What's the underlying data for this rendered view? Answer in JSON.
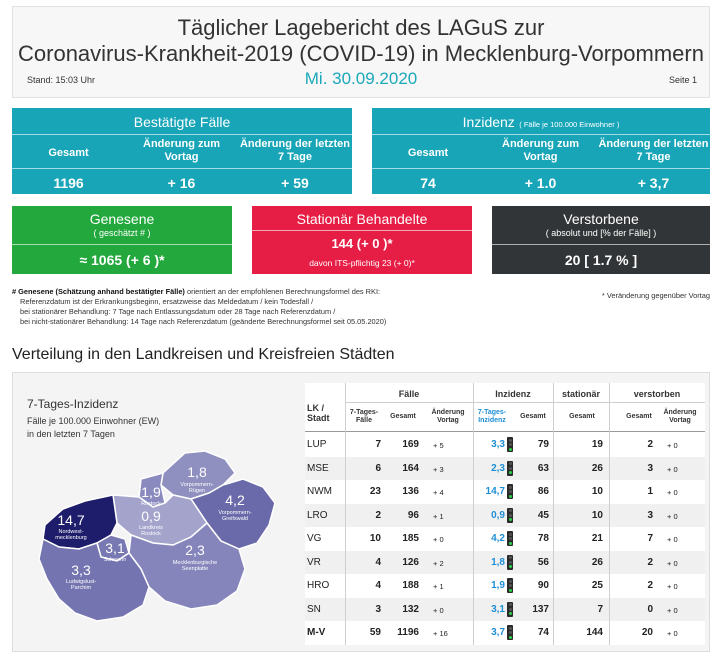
{
  "header": {
    "title_line1": "Täglicher Lagebericht des LAGuS zur",
    "title_line2": "Coronavirus-Krankheit-2019 (COVID-19) in Mecklenburg-Vorpommern",
    "stand": "Stand: 15:03 Uhr",
    "date": "Mi. 30.09.2020",
    "page": "Seite 1"
  },
  "confirmed": {
    "title": "Bestätigte Fälle",
    "col1": "Gesamt",
    "col2": "Änderung zum Vortag",
    "col3": "Änderung der letzten 7 Tage",
    "val1": "1196",
    "val2": "+ 16",
    "val3": "+ 59"
  },
  "incidence": {
    "title": "Inzidenz",
    "title_note": "( Fälle je 100.000 Einwohner )",
    "col1": "Gesamt",
    "col2": "Änderung zum Vortag",
    "col3": "Änderung der letzten 7 Tage",
    "val1": "74",
    "val2": "+ 1.0",
    "val3": "+ 3,7"
  },
  "recovered": {
    "title": "Genesene",
    "sub": "( geschätzt # )",
    "value": "≈ 1065 (+ 6 )*"
  },
  "hospital": {
    "title": "Stationär Behandelte",
    "value": "144 (+ 0 )*",
    "its": "davon ITS-pflichtig 23 (+ 0)*"
  },
  "deceased": {
    "title": "Verstorbene",
    "sub": "( absolut und [% der Fälle] )",
    "value": "20 [ 1.7 % ]"
  },
  "notes": {
    "l1_bold": "# Genesene (Schätzung anhand bestätigter Fälle)",
    "l1_rest": " orientiert an der empfohlenen Berechnungsformel des RKI:",
    "l2": "Referenzdatum ist der Erkrankungsbeginn, ersatzweise das Meldedatum / kein Todesfall /",
    "l3": "bei stationärer Behandlung: 7 Tage nach Entlassungsdatum oder 28 Tage nach Referenzdatum /",
    "l4": "bei nicht-stationärer Behandlung: 14 Tage nach Referenzdatum (geänderte Berechnungsformel seit 05.05.2020)",
    "right": "* Veränderung gegenüber Vortag"
  },
  "section_title": "Verteilung in den Landkreisen und Kreisfreien Städten",
  "map": {
    "title": "7-Tages-Inzidenz",
    "sub1": "Fälle je 100.000 Einwohner (EW)",
    "sub2": "in den letzten 7 Tagen",
    "regions": [
      {
        "value": "1,8",
        "name1": "Vorpommern-",
        "name2": "Rügen",
        "color": "#8f8fc0"
      },
      {
        "value": "1,9",
        "name1": "Rostock",
        "name2": "",
        "color": "#8a8abf"
      },
      {
        "value": "4,2",
        "name1": "Vorpommern-",
        "name2": "Greifswald",
        "color": "#6a6aaa"
      },
      {
        "value": "0,9",
        "name1": "Landkreis",
        "name2": "Rostock",
        "color": "#a3a3cc"
      },
      {
        "value": "14,7",
        "name1": "Nordwest-",
        "name2": "mecklenburg",
        "color": "#1d1d6b"
      },
      {
        "value": "3,1",
        "name1": "Schwerin",
        "name2": "",
        "color": "#7878b2"
      },
      {
        "value": "2,3",
        "name1": "Mecklenburgische",
        "name2": "Seenplatte",
        "color": "#8585bb"
      },
      {
        "value": "3,3",
        "name1": "Ludwigslust-",
        "name2": "Parchim",
        "color": "#7474b0"
      }
    ]
  },
  "table": {
    "h_lk": "LK /",
    "h_lk2": "Stadt",
    "h_faelle": "Fälle",
    "h_inzidenz": "Inzidenz",
    "h_stationaer": "stationär",
    "h_verstorben": "verstorben",
    "sh_7t": "7-Tages-",
    "sh_7t2": "Fälle",
    "sh_gesamt": "Gesamt",
    "sh_aend": "Änderung",
    "sh_aend2": "Vortag",
    "sh_7i": "7-Tages-",
    "sh_7i2": "Inzidenz",
    "rows": [
      {
        "lk": "LUP",
        "f7": "7",
        "fg": "169",
        "fa": "+ 5",
        "i7": "3,3",
        "ig": "79",
        "st": "19",
        "vg": "2",
        "va": "+ 0"
      },
      {
        "lk": "MSE",
        "f7": "6",
        "fg": "164",
        "fa": "+ 3",
        "i7": "2,3",
        "ig": "63",
        "st": "26",
        "vg": "3",
        "va": "+ 0"
      },
      {
        "lk": "NWM",
        "f7": "23",
        "fg": "136",
        "fa": "+ 4",
        "i7": "14,7",
        "ig": "86",
        "st": "10",
        "vg": "1",
        "va": "+ 0"
      },
      {
        "lk": "LRO",
        "f7": "2",
        "fg": "96",
        "fa": "+ 1",
        "i7": "0,9",
        "ig": "45",
        "st": "10",
        "vg": "3",
        "va": "+ 0"
      },
      {
        "lk": "VG",
        "f7": "10",
        "fg": "185",
        "fa": "+ 0",
        "i7": "4,2",
        "ig": "78",
        "st": "21",
        "vg": "7",
        "va": "+ 0"
      },
      {
        "lk": "VR",
        "f7": "4",
        "fg": "126",
        "fa": "+ 2",
        "i7": "1,8",
        "ig": "56",
        "st": "26",
        "vg": "2",
        "va": "+ 0"
      },
      {
        "lk": "HRO",
        "f7": "4",
        "fg": "188",
        "fa": "+ 1",
        "i7": "1,9",
        "ig": "90",
        "st": "25",
        "vg": "2",
        "va": "+ 0"
      },
      {
        "lk": "SN",
        "f7": "3",
        "fg": "132",
        "fa": "+ 0",
        "i7": "3,1",
        "ig": "137",
        "st": "7",
        "vg": "0",
        "va": "+ 0"
      },
      {
        "lk": "M-V",
        "f7": "59",
        "fg": "1196",
        "fa": "+ 16",
        "i7": "3,7",
        "ig": "74",
        "st": "144",
        "vg": "20",
        "va": "+ 0"
      }
    ]
  }
}
